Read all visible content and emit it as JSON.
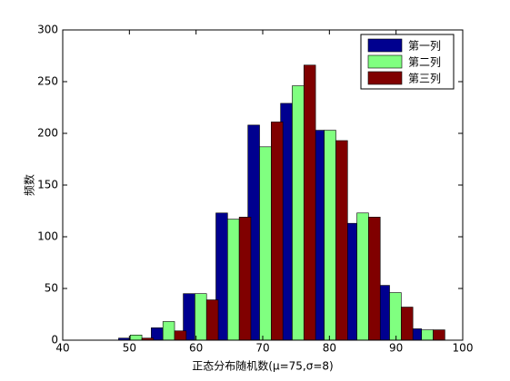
{
  "chart_data": {
    "type": "bar",
    "x": [
      51,
      55.9,
      60.7,
      65.6,
      70.4,
      75.3,
      80.1,
      85,
      89.9,
      94.7
    ],
    "series": [
      {
        "name": "第一列",
        "color": "#00008f",
        "values": [
          2,
          12,
          45,
          123,
          208,
          229,
          203,
          113,
          53,
          11
        ]
      },
      {
        "name": "第二列",
        "color": "#80ff80",
        "values": [
          5,
          18,
          45,
          117,
          187,
          246,
          203,
          123,
          46,
          10
        ]
      },
      {
        "name": "第三列",
        "color": "#800000",
        "values": [
          2,
          9,
          39,
          119,
          211,
          266,
          193,
          119,
          32,
          10
        ]
      }
    ],
    "xlabel": "正态分布随机数(μ=75,σ=8)",
    "ylabel": "频数",
    "xlim": [
      40,
      100
    ],
    "xticks": [
      40,
      50,
      60,
      70,
      80,
      90,
      100
    ],
    "ylim": [
      0,
      300
    ],
    "yticks": [
      0,
      50,
      100,
      150,
      200,
      250,
      300
    ],
    "legend": "upper right"
  }
}
